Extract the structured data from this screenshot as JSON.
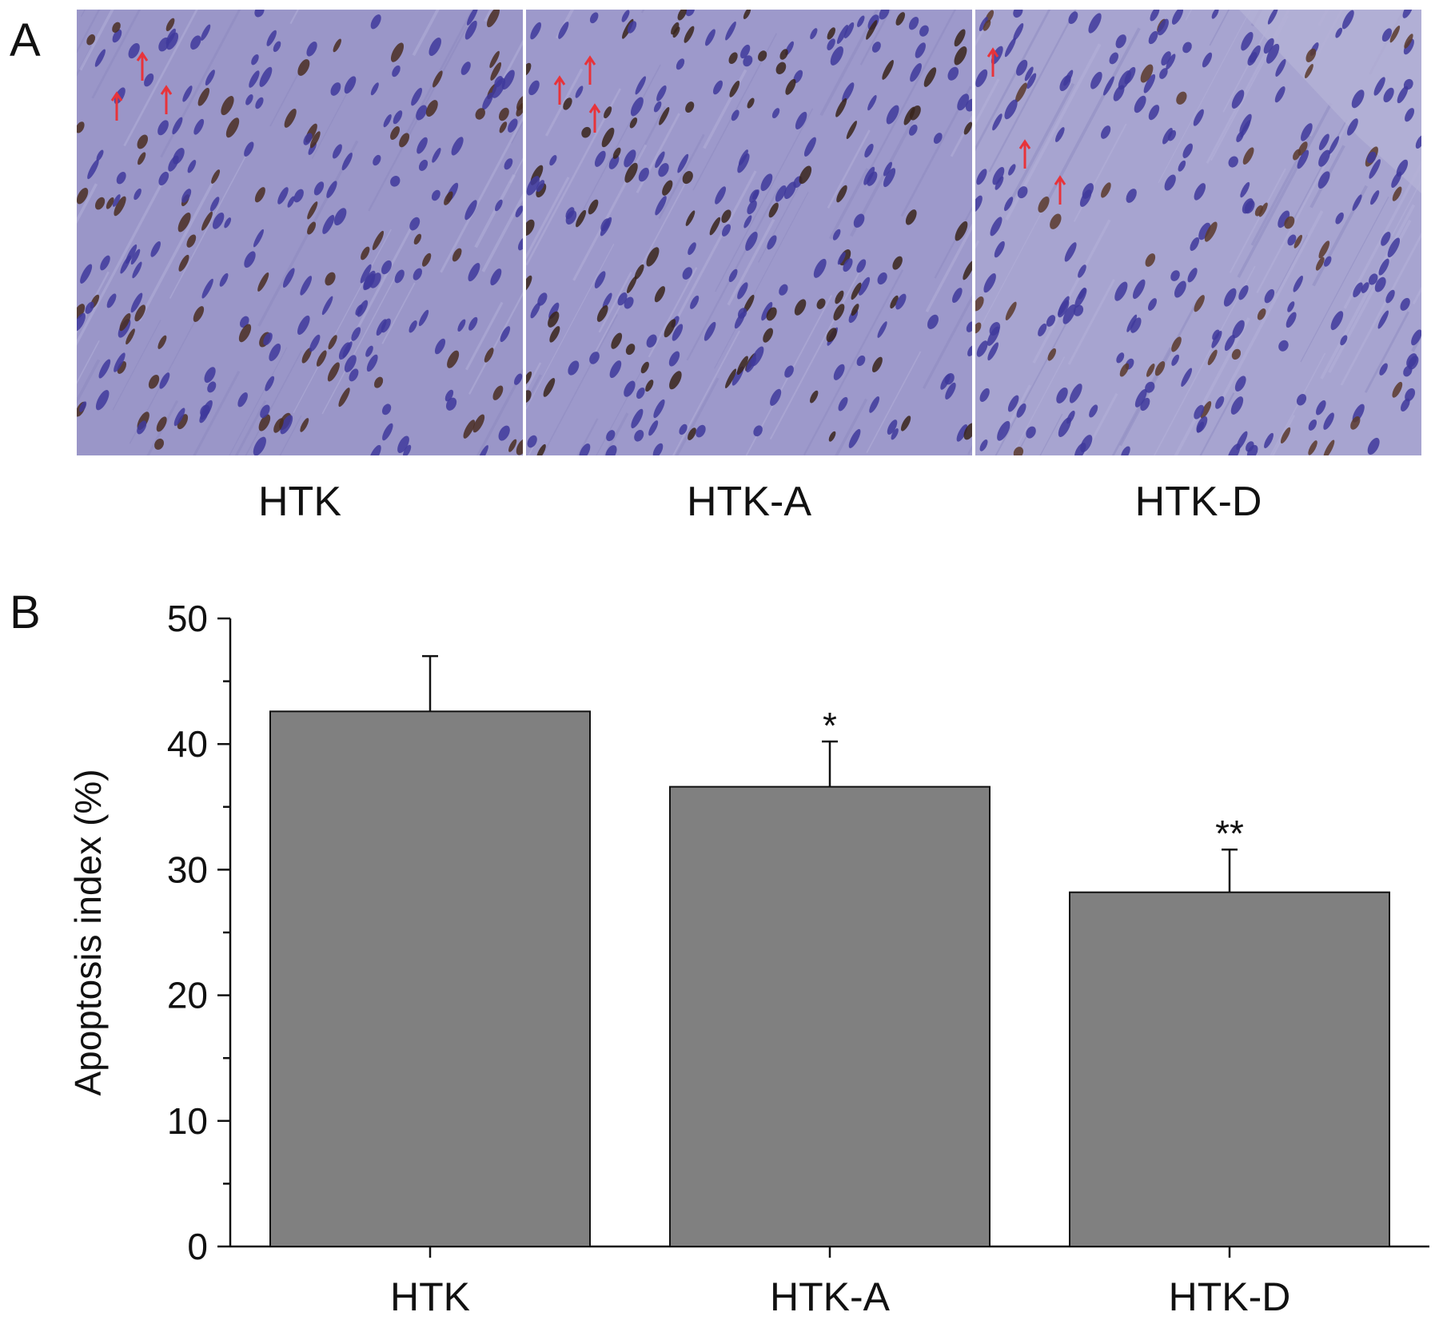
{
  "panel_a": {
    "letter": "A",
    "images": [
      {
        "label": "HTK",
        "tissue_color": "#9a96c8",
        "nuclei_color": "#3f3a9c",
        "stained_color": "#4a2e22",
        "arrow_color": "#e8333a"
      },
      {
        "label": "HTK-A",
        "tissue_color": "#9d99cb",
        "nuclei_color": "#3f3a9c",
        "stained_color": "#3a241b",
        "arrow_color": "#e8333a"
      },
      {
        "label": "HTK-D",
        "tissue_color": "#a7a4d0",
        "nuclei_color": "#3f3a9c",
        "stained_color": "#5a3a2c",
        "arrow_color": "#e8333a"
      }
    ]
  },
  "panel_b": {
    "letter": "B"
  },
  "chart_data": {
    "type": "bar",
    "categories": [
      "HTK",
      "HTK-A",
      "HTK-D"
    ],
    "values": [
      42.6,
      36.6,
      28.2
    ],
    "error": [
      4.4,
      3.6,
      3.4
    ],
    "significance": [
      "",
      "*",
      "**"
    ],
    "ylabel": "Apoptosis index (%)",
    "xlabel": "",
    "ylim": [
      0,
      50
    ],
    "yticks": [
      "0",
      "10",
      "20",
      "30",
      "40",
      "50"
    ],
    "bar_color": "#808080",
    "grid": false
  }
}
